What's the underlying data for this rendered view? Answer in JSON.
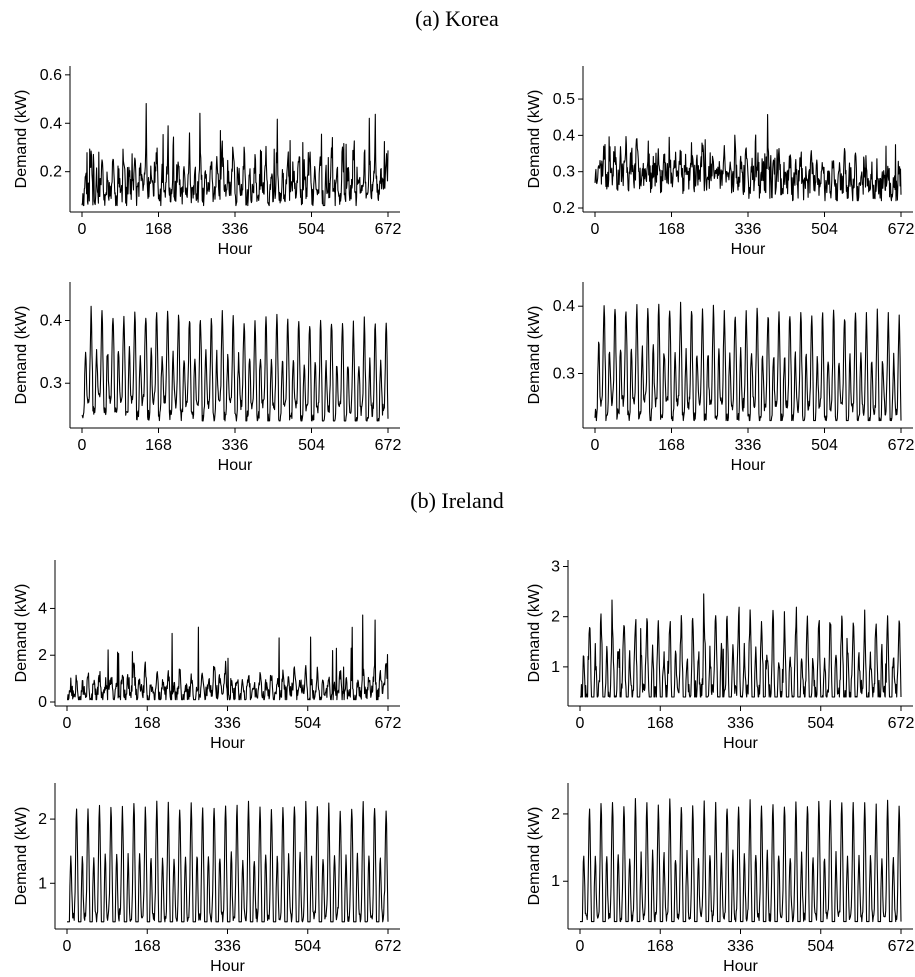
{
  "sections": [
    {
      "title": "(a)  Korea"
    },
    {
      "title": "(b)  Ireland"
    }
  ],
  "chart_data": [
    {
      "type": "line",
      "section": "(a)  Korea",
      "xlabel": "Hour",
      "ylabel": "Demand (kW)",
      "xlim": [
        0,
        672
      ],
      "ylim": [
        0.05,
        0.62
      ],
      "xticks": [
        0,
        168,
        336,
        504,
        672
      ],
      "xtick_labels": [
        "0",
        "168",
        "336",
        "504",
        "672"
      ],
      "yticks": [
        0.2,
        0.4,
        0.6
      ],
      "ytick_labels": [
        "0.2",
        "0.4",
        "0.6"
      ],
      "series": [
        {
          "profile": {
            "base": 0.11,
            "amp": 0.15,
            "noise": 0.05,
            "spike_p": 0.05,
            "spike": 0.22,
            "weekly": 0.02,
            "clip": [
              0.06,
              0.62
            ],
            "seed": 11
          }
        }
      ]
    },
    {
      "type": "line",
      "section": "(a)  Korea",
      "xlabel": "Hour",
      "ylabel": "Demand (kW)",
      "xlim": [
        0,
        672
      ],
      "ylim": [
        0.2,
        0.58
      ],
      "xticks": [
        0,
        168,
        336,
        504,
        672
      ],
      "xtick_labels": [
        "0",
        "168",
        "336",
        "504",
        "672"
      ],
      "yticks": [
        0.2,
        0.3,
        0.4,
        0.5
      ],
      "ytick_labels": [
        "0.2",
        "0.3",
        "0.4",
        "0.5"
      ],
      "series": [
        {
          "profile": {
            "base": 0.3,
            "amp": 0.07,
            "noise": 0.04,
            "spike_p": 0.04,
            "spike": 0.1,
            "weekly": 0.0,
            "trend": -0.05,
            "clip": [
              0.22,
              0.57
            ],
            "seed": 23
          }
        }
      ]
    },
    {
      "type": "line",
      "section": "(a)  Korea",
      "xlabel": "Hour",
      "ylabel": "Demand (kW)",
      "xlim": [
        0,
        672
      ],
      "ylim": [
        0.235,
        0.455
      ],
      "xticks": [
        0,
        168,
        336,
        504,
        672
      ],
      "xtick_labels": [
        "0",
        "168",
        "336",
        "504",
        "672"
      ],
      "yticks": [
        0.3,
        0.4
      ],
      "ytick_labels": [
        "0.3",
        "0.4"
      ],
      "series": [
        {
          "profile": {
            "base": 0.275,
            "amp": 0.14,
            "noise": 0.01,
            "spike_p": 0.01,
            "spike": 0.02,
            "weekly": 0.0,
            "trend": -0.02,
            "clip": [
              0.24,
              0.45
            ],
            "seed": 37
          }
        }
      ]
    },
    {
      "type": "line",
      "section": "(a)  Korea",
      "xlabel": "Hour",
      "ylabel": "Demand (kW)",
      "xlim": [
        0,
        672
      ],
      "ylim": [
        0.225,
        0.43
      ],
      "xticks": [
        0,
        168,
        336,
        504,
        672
      ],
      "xtick_labels": [
        "0",
        "168",
        "336",
        "504",
        "672"
      ],
      "yticks": [
        0.3,
        0.4
      ],
      "ytick_labels": [
        "0.3",
        "0.4"
      ],
      "series": [
        {
          "profile": {
            "base": 0.26,
            "amp": 0.14,
            "noise": 0.01,
            "spike_p": 0.01,
            "spike": 0.02,
            "weekly": 0.0,
            "trend": -0.015,
            "clip": [
              0.23,
              0.425
            ],
            "seed": 41
          }
        }
      ]
    },
    {
      "type": "line",
      "section": "(b)  Ireland",
      "xlabel": "Hour",
      "ylabel": "Demand (kW)",
      "xlim": [
        0,
        672
      ],
      "ylim": [
        0,
        5.9
      ],
      "xticks": [
        0,
        168,
        336,
        504,
        672
      ],
      "xtick_labels": [
        "0",
        "168",
        "336",
        "504",
        "672"
      ],
      "yticks": [
        0,
        2,
        4
      ],
      "ytick_labels": [
        "0",
        "2",
        "4"
      ],
      "series": [
        {
          "profile": {
            "base": 0.3,
            "amp": 0.9,
            "noise": 0.35,
            "spike_p": 0.03,
            "spike": 2.6,
            "weekly": 0.2,
            "clip": [
              0.1,
              5.6
            ],
            "seed": 53
          }
        }
      ]
    },
    {
      "type": "line",
      "section": "(b)  Ireland",
      "xlabel": "Hour",
      "ylabel": "Demand (kW)",
      "xlim": [
        0,
        672
      ],
      "ylim": [
        0.3,
        3.05
      ],
      "xticks": [
        0,
        168,
        336,
        504,
        672
      ],
      "xtick_labels": [
        "0",
        "168",
        "336",
        "504",
        "672"
      ],
      "yticks": [
        1,
        2,
        3
      ],
      "ytick_labels": [
        "1",
        "2",
        "3"
      ],
      "series": [
        {
          "profile": {
            "base": 0.45,
            "amp": 1.5,
            "noise": 0.2,
            "spike_p": 0.03,
            "spike": 0.7,
            "weekly": 0.0,
            "clip": [
              0.4,
              3.0
            ],
            "seed": 67
          }
        }
      ]
    },
    {
      "type": "line",
      "section": "(b)  Ireland",
      "xlabel": "Hour",
      "ylabel": "Demand (kW)",
      "xlim": [
        0,
        672
      ],
      "ylim": [
        0.35,
        2.5
      ],
      "xticks": [
        0,
        168,
        336,
        504,
        672
      ],
      "xtick_labels": [
        "0",
        "168",
        "336",
        "504",
        "672"
      ],
      "yticks": [
        1,
        2
      ],
      "ytick_labels": [
        "1",
        "2"
      ],
      "series": [
        {
          "profile": {
            "base": 0.45,
            "amp": 1.75,
            "noise": 0.08,
            "spike_p": 0.01,
            "spike": 0.2,
            "weekly": 0.0,
            "clip": [
              0.4,
              2.45
            ],
            "seed": 71
          }
        }
      ]
    },
    {
      "type": "line",
      "section": "(b)  Ireland",
      "xlabel": "Hour",
      "ylabel": "Demand (kW)",
      "xlim": [
        0,
        672
      ],
      "ylim": [
        0.35,
        2.4
      ],
      "xticks": [
        0,
        168,
        336,
        504,
        672
      ],
      "xtick_labels": [
        "0",
        "168",
        "336",
        "504",
        "672"
      ],
      "yticks": [
        1,
        2
      ],
      "ytick_labels": [
        "1",
        "2"
      ],
      "series": [
        {
          "profile": {
            "base": 0.45,
            "amp": 1.7,
            "noise": 0.08,
            "spike_p": 0.01,
            "spike": 0.2,
            "weekly": 0.0,
            "clip": [
              0.4,
              2.35
            ],
            "seed": 83
          }
        }
      ]
    }
  ]
}
